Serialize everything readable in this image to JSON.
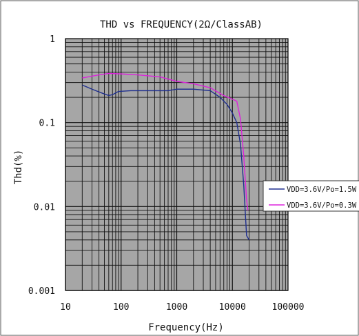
{
  "chart_data": {
    "type": "line",
    "title": "THD vs FREQUENCY(2Ω/ClassAB)",
    "xlabel": "Frequency(Hz)",
    "ylabel": "Thd(%)",
    "x_scale": "log",
    "y_scale": "log",
    "xlim": [
      10,
      100000
    ],
    "ylim": [
      0.001,
      1
    ],
    "x_ticks": [
      "10",
      "100",
      "1000",
      "10000",
      "100000"
    ],
    "y_ticks": [
      "1",
      "0.1",
      "0.01",
      "0.001"
    ],
    "grid": true,
    "plot_background": "#a6a6a6",
    "legend_position": "right",
    "series": [
      {
        "name": "VDD=3.6V/Po=1.5W",
        "color": "#1f2f8f",
        "points": [
          [
            20,
            0.28
          ],
          [
            30,
            0.25
          ],
          [
            45,
            0.225
          ],
          [
            60,
            0.21
          ],
          [
            70,
            0.215
          ],
          [
            90,
            0.235
          ],
          [
            150,
            0.24
          ],
          [
            300,
            0.24
          ],
          [
            700,
            0.24
          ],
          [
            1000,
            0.25
          ],
          [
            2000,
            0.25
          ],
          [
            4000,
            0.24
          ],
          [
            6000,
            0.2
          ],
          [
            8000,
            0.165
          ],
          [
            10000,
            0.13
          ],
          [
            12000,
            0.1
          ],
          [
            14000,
            0.055
          ],
          [
            16000,
            0.018
          ],
          [
            18000,
            0.0045
          ],
          [
            20000,
            0.004
          ]
        ]
      },
      {
        "name": "VDD=3.6V/Po=0.3W",
        "color": "#dd22dd",
        "points": [
          [
            20,
            0.34
          ],
          [
            40,
            0.37
          ],
          [
            60,
            0.385
          ],
          [
            100,
            0.38
          ],
          [
            200,
            0.37
          ],
          [
            500,
            0.35
          ],
          [
            1000,
            0.31
          ],
          [
            2000,
            0.29
          ],
          [
            4000,
            0.26
          ],
          [
            7000,
            0.21
          ],
          [
            10000,
            0.19
          ],
          [
            12000,
            0.18
          ],
          [
            14000,
            0.11
          ],
          [
            16000,
            0.04
          ],
          [
            18000,
            0.012
          ],
          [
            19000,
            0.009
          ]
        ]
      }
    ]
  }
}
